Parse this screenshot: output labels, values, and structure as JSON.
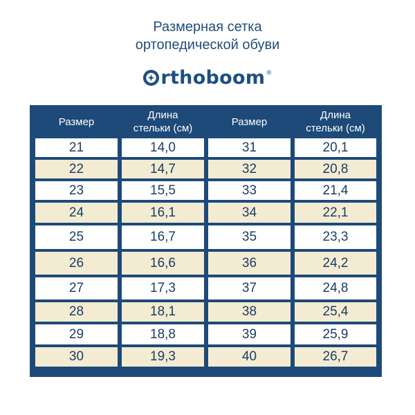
{
  "header": {
    "title_line1": "Размерная сетка",
    "title_line2": "ортопедической обуви",
    "brand": "rthoboom",
    "brand_mark": "®"
  },
  "table": {
    "columns": [
      "Размер",
      "Длина стельки (см)",
      "Размер",
      "Длина стельки (см)"
    ],
    "column_lines": [
      [
        "Размер"
      ],
      [
        "Длина",
        "стельки (см)"
      ],
      [
        "Размер"
      ],
      [
        "Длина",
        "стельки (см)"
      ]
    ],
    "rows": [
      [
        "21",
        "14,0",
        "31",
        "20,1"
      ],
      [
        "22",
        "14,7",
        "32",
        "20,8"
      ],
      [
        "23",
        "15,5",
        "33",
        "21,4"
      ],
      [
        "24",
        "16,1",
        "34",
        "22,1"
      ],
      [
        "25",
        "16,7",
        "35",
        "23,3"
      ],
      [
        "26",
        "16,6",
        "36",
        "24,2"
      ],
      [
        "27",
        "17,3",
        "37",
        "24,8"
      ],
      [
        "28",
        "18,1",
        "38",
        "25,4"
      ],
      [
        "29",
        "18,8",
        "39",
        "25,9"
      ],
      [
        "30",
        "19,3",
        "40",
        "26,7"
      ]
    ]
  },
  "colors": {
    "navy": "#1d4a78",
    "cream": "#f3ecd3",
    "text": "#1c3d63"
  }
}
